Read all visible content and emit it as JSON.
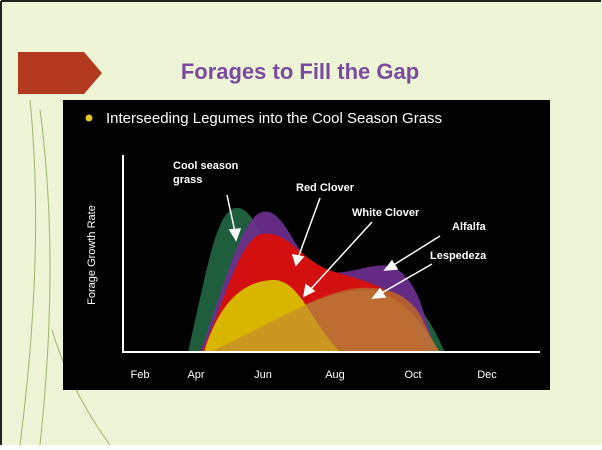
{
  "slide": {
    "title": "Forages to Fill the Gap",
    "bullet": "Interseeding Legumes into the Cool Season Grass",
    "figure": {
      "y_axis_label": "Forage Growth Rate",
      "x_labels": [
        "Feb",
        "Apr",
        "Jun",
        "Aug",
        "Oct",
        "Dec"
      ],
      "annotations": [
        "Cool season",
        "grass",
        "Red Clover",
        "White Clover",
        "Alfalfa",
        "Lespedeza"
      ]
    }
  }
}
